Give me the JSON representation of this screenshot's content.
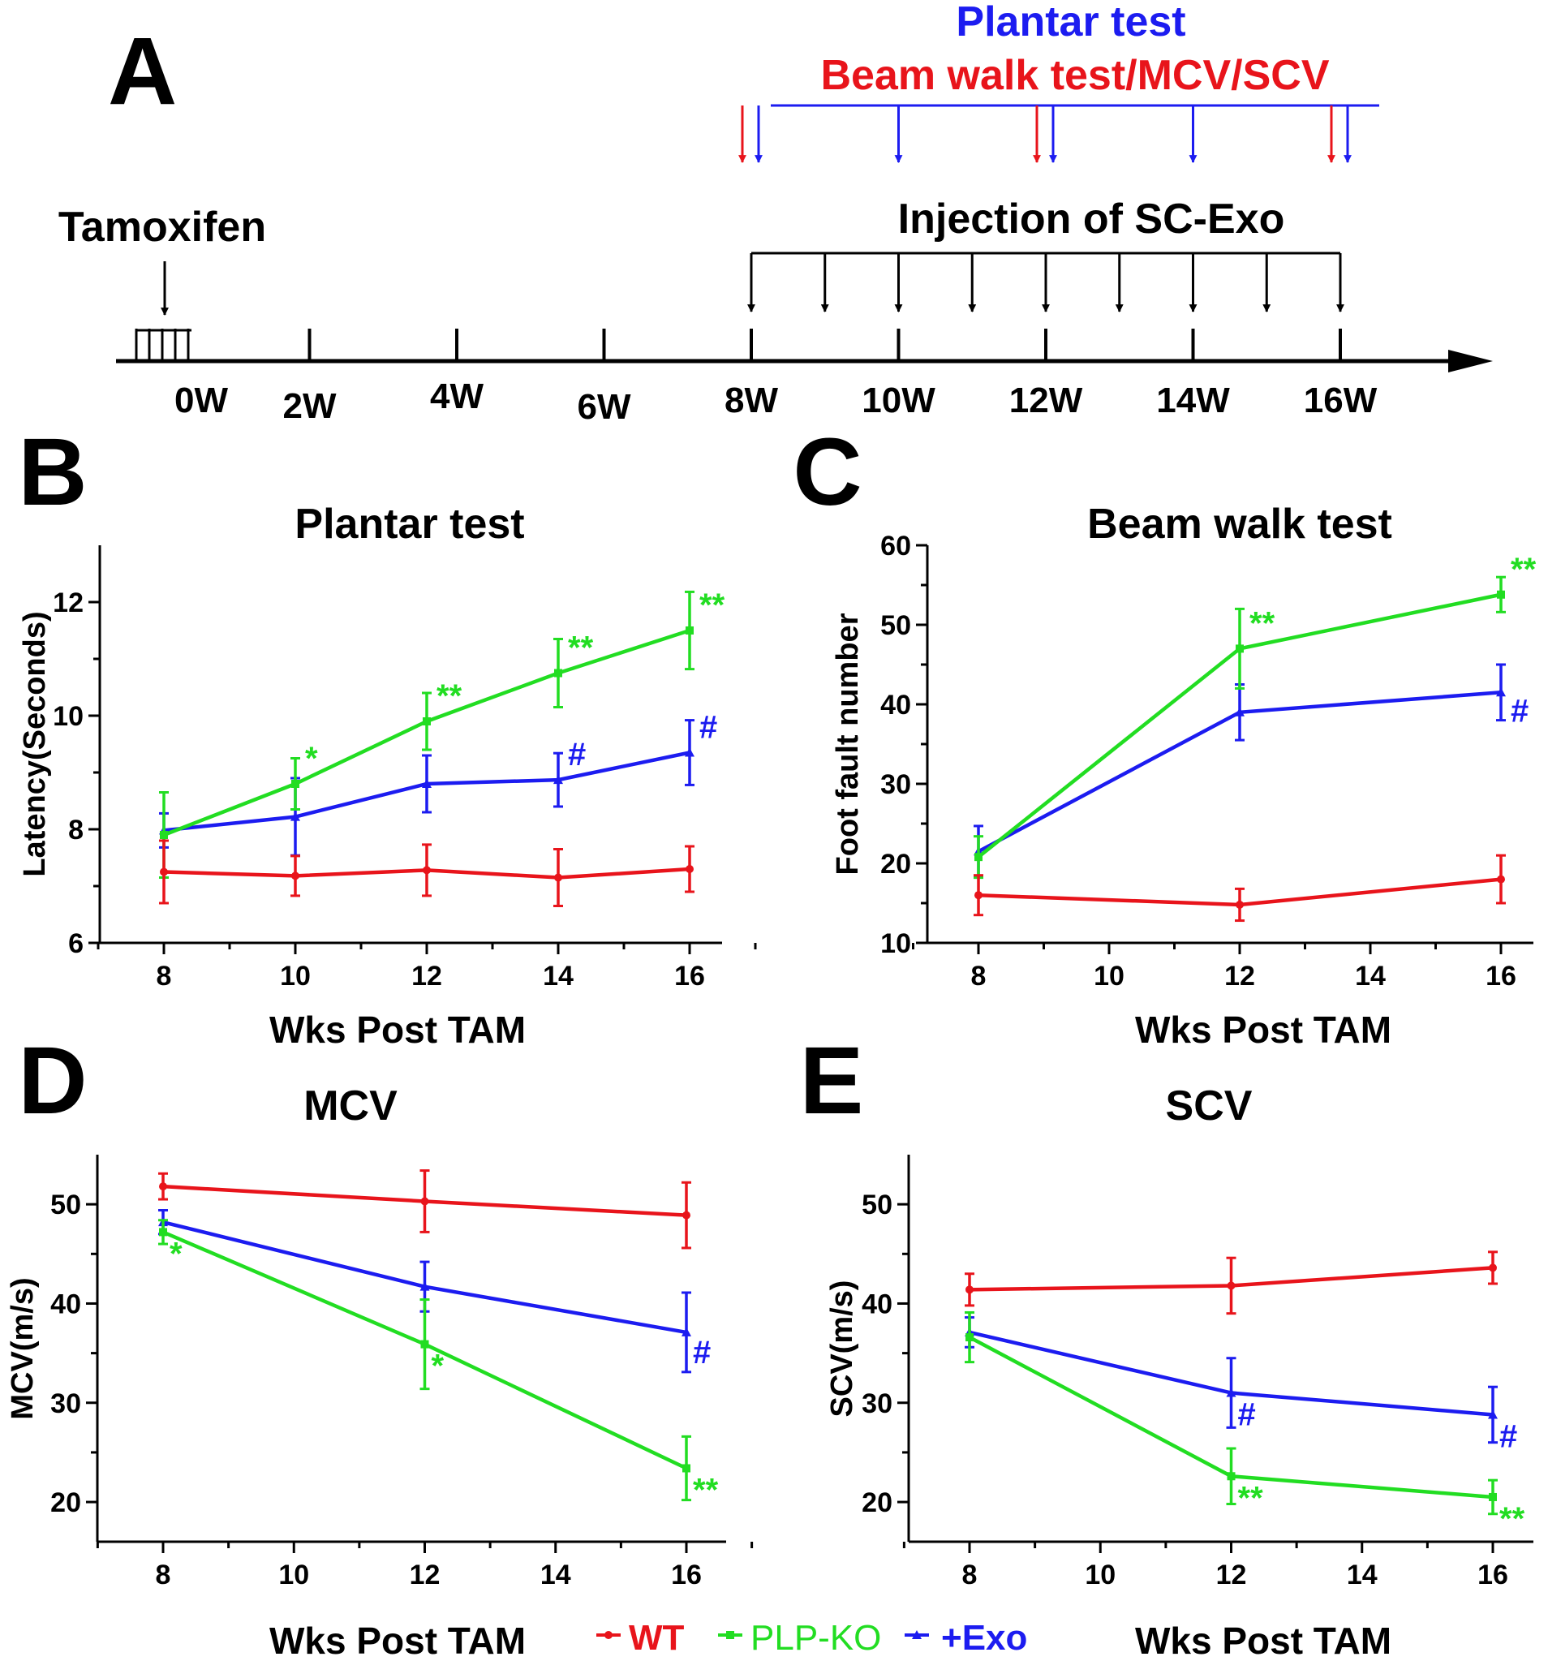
{
  "colors": {
    "wt": "#e8141b",
    "ko": "#22dd22",
    "exo": "#1c1cf0",
    "black": "#000000"
  },
  "panel_a": {
    "letter": "A",
    "plantar_label": "Plantar test",
    "beam_label": "Beam walk test/MCV/SCV",
    "tamoxifen_label": "Tamoxifen",
    "injection_label": "Injection of SC-Exo",
    "weeks": [
      {
        "week": 0,
        "label": "0W"
      },
      {
        "week": 2,
        "label": "2W"
      },
      {
        "week": 4,
        "label": "4W"
      },
      {
        "week": 6,
        "label": "6W"
      },
      {
        "week": 8,
        "label": "8W"
      },
      {
        "week": 10,
        "label": "10W"
      },
      {
        "week": 12,
        "label": "12W"
      },
      {
        "week": 14,
        "label": "14W"
      },
      {
        "week": 16,
        "label": "16W"
      }
    ],
    "injection_weeks": [
      8,
      9,
      10,
      11,
      12,
      13,
      14,
      15,
      16
    ],
    "plantar_weeks": [
      8,
      10,
      12,
      14,
      16
    ],
    "beam_weeks": [
      8,
      12,
      16
    ]
  },
  "chart_data": [
    {
      "id": "B",
      "type": "line",
      "letter": "B",
      "title": "Plantar test",
      "xlabel": "Wks Post TAM",
      "ylabel": "Latency(Seconds)",
      "xlim": [
        7,
        17
      ],
      "xticks": [
        8,
        10,
        12,
        14,
        16
      ],
      "ylim": [
        6,
        13
      ],
      "yticks": [
        6,
        8,
        10,
        12
      ],
      "x": [
        8,
        10,
        12,
        14,
        16
      ],
      "series": [
        {
          "name": "WT",
          "color_key": "wt",
          "values": [
            7.25,
            7.18,
            7.28,
            7.15,
            7.3
          ],
          "errors": [
            0.55,
            0.35,
            0.45,
            0.5,
            0.4
          ]
        },
        {
          "name": "PLP-KO",
          "color_key": "ko",
          "values": [
            7.9,
            8.8,
            9.9,
            10.75,
            11.5
          ],
          "errors": [
            0.75,
            0.45,
            0.5,
            0.6,
            0.68
          ]
        },
        {
          "name": "+Exo",
          "color_key": "exo",
          "values": [
            7.98,
            8.22,
            8.8,
            8.87,
            9.35
          ],
          "errors": [
            0.3,
            0.68,
            0.5,
            0.47,
            0.57
          ]
        }
      ],
      "annotations": [
        {
          "x": 10,
          "y": 8.8,
          "text": "*",
          "color_key": "ko"
        },
        {
          "x": 12,
          "y": 9.9,
          "text": "**",
          "color_key": "ko"
        },
        {
          "x": 14,
          "y": 10.75,
          "text": "**",
          "color_key": "ko"
        },
        {
          "x": 16,
          "y": 11.5,
          "text": "**",
          "color_key": "ko"
        },
        {
          "x": 14,
          "y": 8.87,
          "text": "#",
          "color_key": "exo"
        },
        {
          "x": 16,
          "y": 9.35,
          "text": "#",
          "color_key": "exo"
        }
      ]
    },
    {
      "id": "C",
      "type": "line",
      "letter": "C",
      "title": "Beam walk test",
      "xlabel": "Wks Post TAM",
      "ylabel": "Foot fault number",
      "xlim": [
        7,
        17
      ],
      "xticks": [
        8,
        10,
        12,
        14,
        16
      ],
      "ylim": [
        10,
        60
      ],
      "yticks": [
        10,
        20,
        30,
        40,
        50,
        60
      ],
      "x": [
        8,
        12,
        16
      ],
      "series": [
        {
          "name": "WT",
          "color_key": "wt",
          "values": [
            16,
            14.8,
            18
          ],
          "errors": [
            2.5,
            2,
            3
          ]
        },
        {
          "name": "PLP-KO",
          "color_key": "ko",
          "values": [
            20.8,
            47,
            53.8
          ],
          "errors": [
            2.6,
            5,
            2.2
          ]
        },
        {
          "name": "+Exo",
          "color_key": "exo",
          "values": [
            21.5,
            39,
            41.5
          ],
          "errors": [
            3.2,
            3.5,
            3.5
          ]
        }
      ],
      "annotations": [
        {
          "x": 12,
          "y": 47,
          "text": "**",
          "color_key": "ko"
        },
        {
          "x": 16,
          "y": 53.8,
          "text": "**",
          "color_key": "ko"
        },
        {
          "x": 16,
          "y": 41.5,
          "text": "#",
          "color_key": "exo"
        }
      ]
    },
    {
      "id": "D",
      "type": "line",
      "letter": "D",
      "title": "MCV",
      "xlabel": "Wks Post TAM",
      "ylabel": "MCV(m/s)",
      "xlim": [
        7,
        17
      ],
      "xticks": [
        8,
        10,
        12,
        14,
        16
      ],
      "ylim": [
        16,
        55
      ],
      "yticks": [
        20,
        30,
        40,
        50
      ],
      "x": [
        8,
        12,
        16
      ],
      "series": [
        {
          "name": "WT",
          "color_key": "wt",
          "values": [
            51.8,
            50.3,
            48.9
          ],
          "errors": [
            1.3,
            3.1,
            3.3
          ]
        },
        {
          "name": "PLP-KO",
          "color_key": "ko",
          "values": [
            47.2,
            35.9,
            23.4
          ],
          "errors": [
            1.2,
            4.5,
            3.2
          ]
        },
        {
          "name": "+Exo",
          "color_key": "exo",
          "values": [
            48.2,
            41.7,
            37.1
          ],
          "errors": [
            1.2,
            2.5,
            4
          ]
        }
      ],
      "annotations": [
        {
          "x": 8,
          "y": 47.2,
          "text": "*",
          "color_key": "ko"
        },
        {
          "x": 12,
          "y": 35.9,
          "text": "*",
          "color_key": "ko"
        },
        {
          "x": 16,
          "y": 23.4,
          "text": "**",
          "color_key": "ko"
        },
        {
          "x": 16,
          "y": 37.1,
          "text": "#",
          "color_key": "exo"
        }
      ]
    },
    {
      "id": "E",
      "type": "line",
      "letter": "E",
      "title": "SCV",
      "xlabel": "Wks Post TAM",
      "ylabel": "SCV(m/s)",
      "xlim": [
        7,
        17
      ],
      "xticks": [
        8,
        10,
        12,
        14,
        16
      ],
      "ylim": [
        16,
        55
      ],
      "yticks": [
        20,
        30,
        40,
        50
      ],
      "x": [
        8,
        12,
        16
      ],
      "series": [
        {
          "name": "WT",
          "color_key": "wt",
          "values": [
            41.4,
            41.8,
            43.6
          ],
          "errors": [
            1.6,
            2.8,
            1.6
          ]
        },
        {
          "name": "PLP-KO",
          "color_key": "ko",
          "values": [
            36.6,
            22.6,
            20.5
          ],
          "errors": [
            2.5,
            2.8,
            1.7
          ]
        },
        {
          "name": "+Exo",
          "color_key": "exo",
          "values": [
            37.1,
            31,
            28.8
          ],
          "errors": [
            1.5,
            3.5,
            2.8
          ]
        }
      ],
      "annotations": [
        {
          "x": 12,
          "y": 22.6,
          "text": "**",
          "color_key": "ko"
        },
        {
          "x": 16,
          "y": 20.5,
          "text": "**",
          "color_key": "ko"
        },
        {
          "x": 12,
          "y": 31,
          "text": "#",
          "color_key": "exo"
        },
        {
          "x": 16,
          "y": 28.8,
          "text": "#",
          "color_key": "exo"
        }
      ]
    }
  ],
  "legend": [
    {
      "label": "WT",
      "color_key": "wt",
      "bold": true
    },
    {
      "label": "PLP-KO",
      "color_key": "ko",
      "bold": false
    },
    {
      "label": "+Exo",
      "color_key": "exo",
      "bold": true
    }
  ]
}
